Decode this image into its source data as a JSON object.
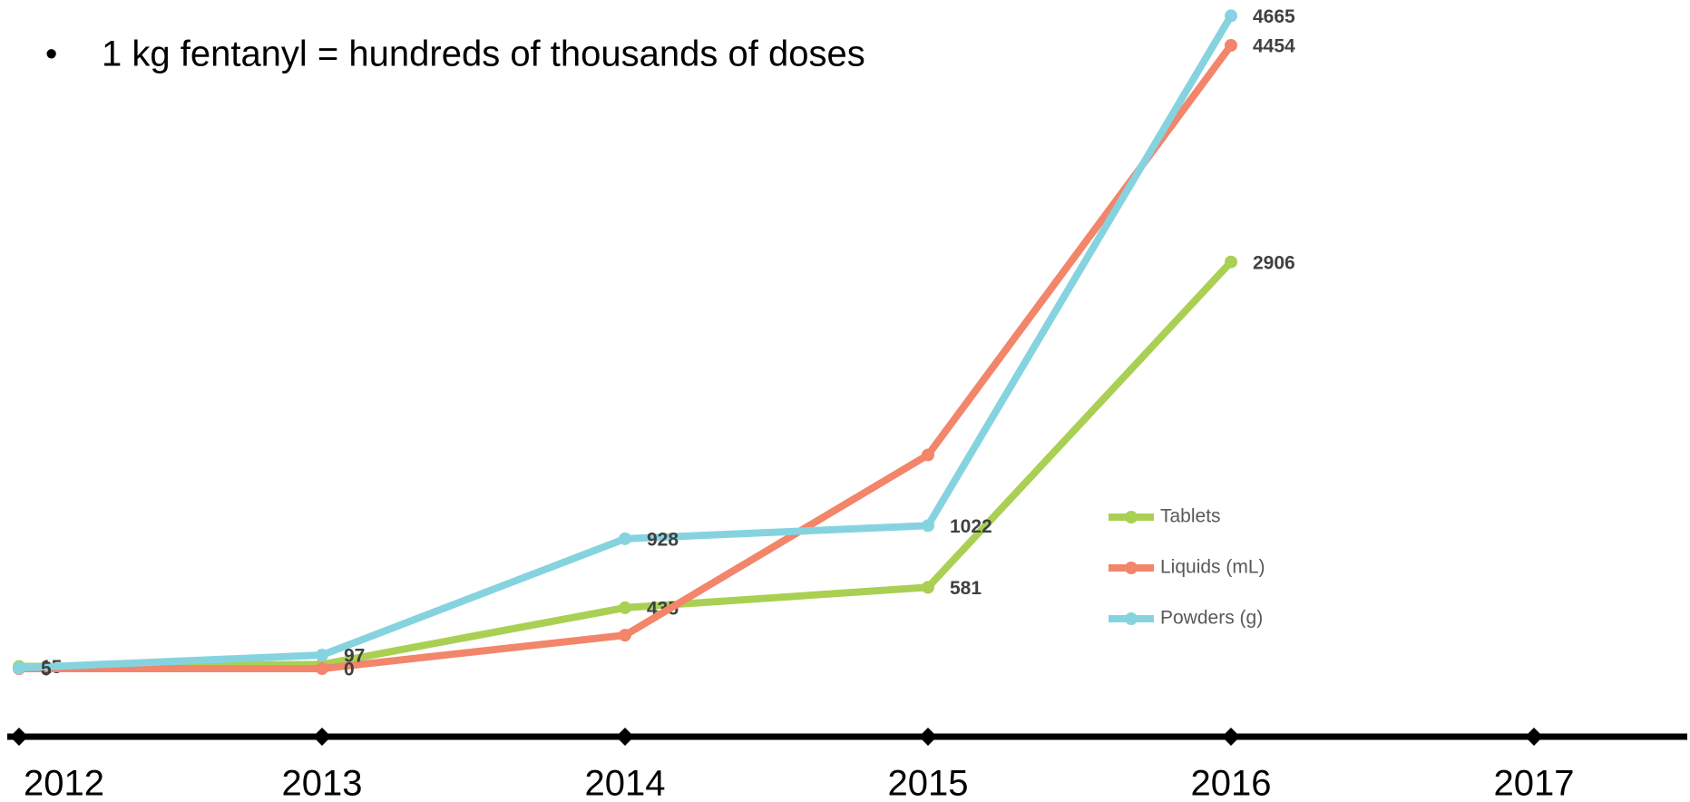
{
  "bullet": "1 kg fentanyl = hundreds of thousands of doses",
  "timeline": [
    "2012",
    "2013",
    "2014",
    "2015",
    "2016",
    "2017"
  ],
  "chart_data": {
    "type": "line",
    "categories": [
      "2012",
      "2013",
      "2014",
      "2015",
      "2016"
    ],
    "ylim": [
      0,
      4700
    ],
    "series": [
      {
        "name": "Tablets",
        "color": "#a9d053",
        "values": [
          15,
          30,
          435,
          581,
          2906
        ],
        "value_labels": [
          "15",
          null,
          "435",
          "581",
          "2906"
        ]
      },
      {
        "name": "Liquids (mL)",
        "color": "#f2856a",
        "values": [
          0,
          0,
          239,
          1527,
          4454
        ],
        "value_labels": [
          "0",
          "0",
          null,
          null,
          "4454"
        ]
      },
      {
        "name": "Powders (g)",
        "color": "#86d3e0",
        "values": [
          5,
          97,
          928,
          1022,
          4665
        ],
        "value_labels": [
          "5",
          "97",
          "928",
          "1022",
          "4665"
        ]
      }
    ]
  }
}
